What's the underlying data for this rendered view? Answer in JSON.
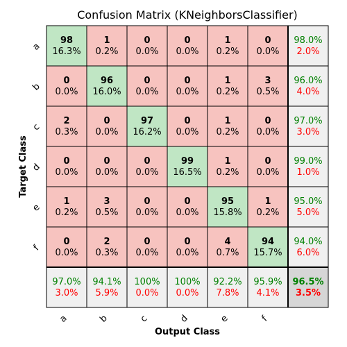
{
  "chart_data": {
    "type": "heatmap",
    "title": "Confusion Matrix (KNeighborsClassifier)",
    "xlabel": "Output Class",
    "ylabel": "Target Class",
    "x_tick_labels": [
      "a",
      "b",
      "c",
      "d",
      "e",
      "f"
    ],
    "y_tick_labels": [
      "a",
      "b",
      "c",
      "d",
      "e",
      "f"
    ],
    "matrix": [
      [
        98,
        1,
        0,
        0,
        1,
        0
      ],
      [
        0,
        96,
        0,
        0,
        1,
        3
      ],
      [
        2,
        0,
        97,
        0,
        1,
        0
      ],
      [
        0,
        0,
        0,
        99,
        1,
        0
      ],
      [
        1,
        3,
        0,
        0,
        95,
        1
      ],
      [
        0,
        2,
        0,
        0,
        4,
        94
      ]
    ],
    "cell_percent": [
      [
        "16.3%",
        "0.2%",
        "0.0%",
        "0.0%",
        "0.2%",
        "0.0%"
      ],
      [
        "0.0%",
        "16.0%",
        "0.0%",
        "0.0%",
        "0.2%",
        "0.5%"
      ],
      [
        "0.3%",
        "0.0%",
        "16.2%",
        "0.0%",
        "0.2%",
        "0.0%"
      ],
      [
        "0.0%",
        "0.0%",
        "0.0%",
        "16.5%",
        "0.2%",
        "0.0%"
      ],
      [
        "0.2%",
        "0.5%",
        "0.0%",
        "0.0%",
        "15.8%",
        "0.2%"
      ],
      [
        "0.0%",
        "0.3%",
        "0.0%",
        "0.0%",
        "0.7%",
        "15.7%"
      ]
    ],
    "row_summary": [
      [
        "98.0%",
        "2.0%"
      ],
      [
        "96.0%",
        "4.0%"
      ],
      [
        "97.0%",
        "3.0%"
      ],
      [
        "99.0%",
        "1.0%"
      ],
      [
        "95.0%",
        "5.0%"
      ],
      [
        "94.0%",
        "6.0%"
      ]
    ],
    "col_summary": [
      [
        "97.0%",
        "3.0%"
      ],
      [
        "94.1%",
        "5.9%"
      ],
      [
        "100%",
        "0.0%"
      ],
      [
        "100%",
        "0.0%"
      ],
      [
        "92.2%",
        "7.8%"
      ],
      [
        "95.9%",
        "4.1%"
      ]
    ],
    "overall": [
      "96.5%",
      "3.5%"
    ],
    "colors": {
      "diagonal": "#c0e6c4",
      "off_diagonal": "#f7c3bf",
      "summary": "#f0f0f0",
      "overall": "#d6d6d6",
      "correct_text": "#008000",
      "error_text": "#ff0000"
    }
  }
}
